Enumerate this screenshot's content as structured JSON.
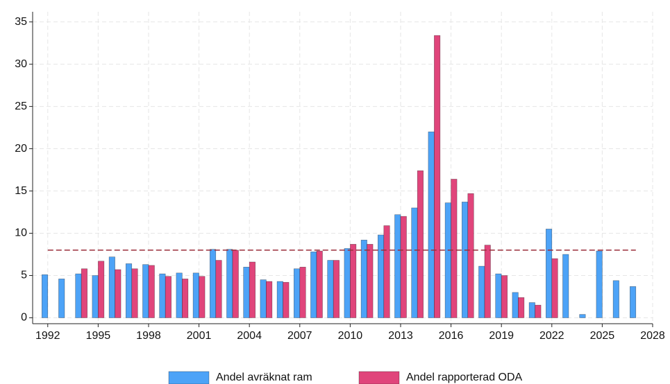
{
  "chart_data": {
    "type": "bar",
    "x": [
      1992,
      1993,
      1994,
      1995,
      1996,
      1997,
      1998,
      1999,
      2000,
      2001,
      2002,
      2003,
      2004,
      2005,
      2006,
      2007,
      2008,
      2009,
      2010,
      2011,
      2012,
      2013,
      2014,
      2015,
      2016,
      2017,
      2018,
      2019,
      2020,
      2021,
      2022,
      2023,
      2024,
      2025,
      2026,
      2027
    ],
    "series": [
      {
        "name": "Andel avräknat ram",
        "color": "#4da3f7",
        "values": [
          5.1,
          4.6,
          5.2,
          5.0,
          7.2,
          6.4,
          6.3,
          5.2,
          5.3,
          5.3,
          8.1,
          8.1,
          6.0,
          4.5,
          4.3,
          5.8,
          7.8,
          6.8,
          8.2,
          9.2,
          9.8,
          12.2,
          13.0,
          22.0,
          13.6,
          13.7,
          6.1,
          5.2,
          3.0,
          1.8,
          10.5,
          7.5,
          0.4,
          7.9,
          4.4,
          3.7
        ]
      },
      {
        "name": "Andel rapporterad ODA",
        "color": "#e0457b",
        "values": [
          null,
          null,
          5.8,
          6.7,
          5.7,
          5.8,
          6.2,
          4.9,
          4.6,
          4.9,
          6.8,
          8.0,
          6.6,
          4.3,
          4.2,
          6.0,
          7.9,
          6.8,
          8.7,
          8.7,
          10.9,
          12.0,
          17.4,
          33.4,
          16.4,
          14.7,
          8.6,
          5.0,
          2.4,
          1.5,
          7.0,
          null,
          null,
          null,
          null,
          null
        ]
      }
    ],
    "reference_line": {
      "value": 8,
      "color": "#9b2d3a"
    },
    "xlim": [
      1991.1,
      2028
    ],
    "xticks": [
      1992,
      1995,
      1998,
      2001,
      2004,
      2007,
      2010,
      2013,
      2016,
      2019,
      2022,
      2025,
      2028
    ],
    "ylim": [
      -0.7,
      36.2
    ],
    "yticks": [
      0,
      5,
      10,
      15,
      20,
      25,
      30,
      35
    ],
    "grid": true
  }
}
